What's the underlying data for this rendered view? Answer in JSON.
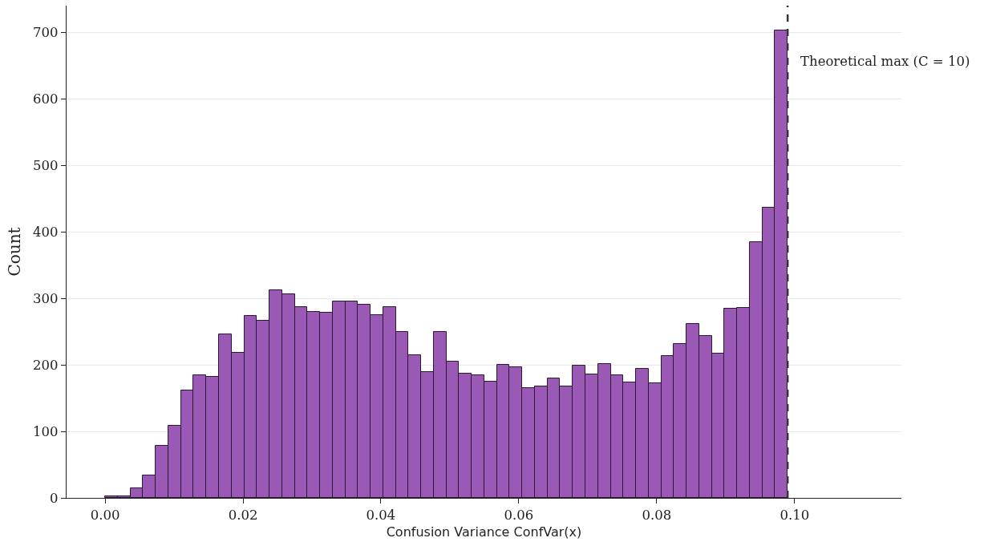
{
  "chart_data": {
    "type": "histogram",
    "xlabel": "Confusion Variance ConfVar(x)",
    "ylabel": "Count",
    "bins": [
      0,
      0.00183,
      0.00367,
      0.0055,
      0.00733,
      0.00917,
      0.011,
      0.01283,
      0.01467,
      0.0165,
      0.01833,
      0.02017,
      0.022,
      0.02383,
      0.02567,
      0.0275,
      0.02933,
      0.03117,
      0.033,
      0.03483,
      0.03667,
      0.0385,
      0.04033,
      0.04217,
      0.044,
      0.04583,
      0.04767,
      0.0495,
      0.05133,
      0.05317,
      0.055,
      0.05683,
      0.05867,
      0.0605,
      0.06233,
      0.06417,
      0.066,
      0.06783,
      0.06967,
      0.0715,
      0.07333,
      0.07517,
      0.077,
      0.07883,
      0.08067,
      0.0825,
      0.08433,
      0.08617,
      0.088,
      0.08983,
      0.09167,
      0.0935,
      0.09533,
      0.09717,
      0.099
    ],
    "values": [
      2,
      3,
      15,
      34,
      78,
      108,
      161,
      185,
      182,
      246,
      218,
      274,
      266,
      312,
      306,
      287,
      280,
      278,
      295,
      295,
      290,
      275,
      287,
      249,
      215,
      189,
      250,
      205,
      187,
      185,
      175,
      200,
      197,
      165,
      168,
      180,
      168,
      199,
      186,
      201,
      185,
      174,
      194,
      172,
      213,
      231,
      262,
      243,
      217,
      284,
      286,
      384,
      436,
      703
    ],
    "color": "#9b59b6",
    "xlim": [
      -0.0056,
      0.1155
    ],
    "xticks": [
      {
        "value": 0,
        "label": "0.00"
      },
      {
        "value": 0.02,
        "label": "0.02"
      },
      {
        "value": 0.04,
        "label": "0.04"
      },
      {
        "value": 0.06,
        "label": "0.06"
      },
      {
        "value": 0.08,
        "label": "0.08"
      },
      {
        "value": 0.1,
        "label": "0.10"
      }
    ],
    "ylim": [
      0,
      740
    ],
    "yticks": [
      0,
      100,
      200,
      300,
      400,
      500,
      600,
      700
    ],
    "grid": "y",
    "ref_lines": [
      {
        "axis": "x",
        "value": 0.099,
        "label": "Theoretical max (C = 10)",
        "color": "#333333",
        "line_style": "dashed"
      }
    ]
  }
}
